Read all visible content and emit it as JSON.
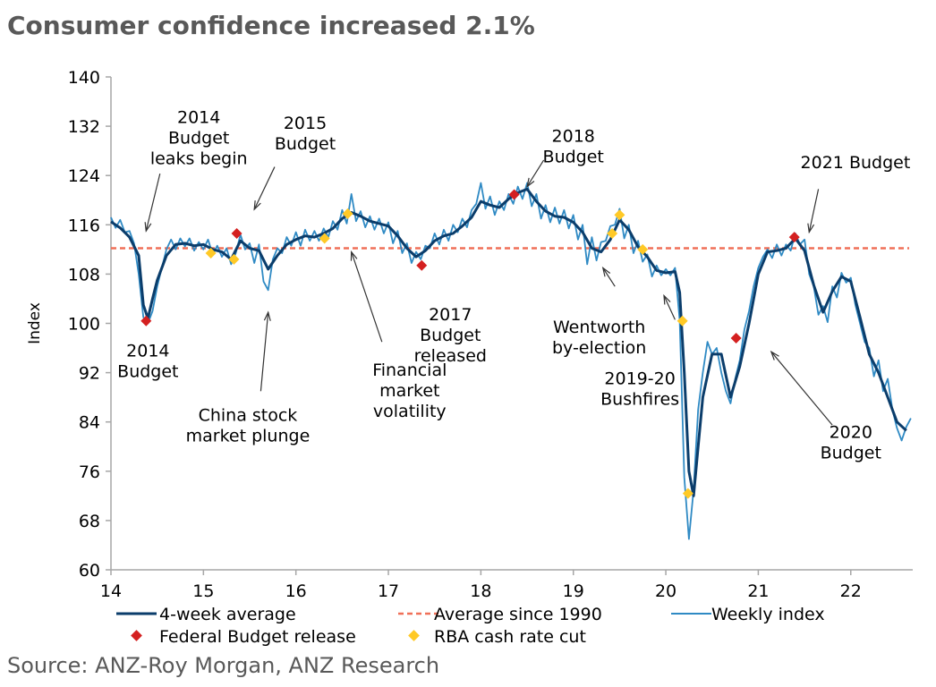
{
  "title": "Consumer confidence increased 2.1%",
  "source": "Source: ANZ-Roy Morgan, ANZ Research",
  "chart_data": {
    "type": "line",
    "ylabel": "Index",
    "xlabel": "",
    "xlim": [
      14,
      22.67
    ],
    "ylim": [
      60,
      140
    ],
    "y_ticks": [
      60,
      68,
      76,
      84,
      92,
      100,
      108,
      116,
      124,
      132,
      140
    ],
    "x_ticks": [
      14,
      15,
      16,
      17,
      18,
      19,
      20,
      21,
      22
    ],
    "x_tick_labels": [
      "14",
      "15",
      "16",
      "17",
      "18",
      "19",
      "20",
      "21",
      "22"
    ],
    "average_since_1990": 112.2,
    "legend": {
      "four_week": "4-week average",
      "average": "Average since 1990",
      "weekly": "Weekly index",
      "budget": "Federal Budget release",
      "rba": "RBA cash rate cut"
    },
    "colors": {
      "four_week": "#0b3d6b",
      "weekly": "#2f8ac4",
      "average": "#f07058",
      "budget": "#d42020",
      "rba": "#ffc926",
      "axis": "#a6a6a6"
    },
    "four_week": [
      [
        14.0,
        116.5
      ],
      [
        14.1,
        115.5
      ],
      [
        14.2,
        114
      ],
      [
        14.3,
        111
      ],
      [
        14.35,
        103
      ],
      [
        14.4,
        100.8
      ],
      [
        14.45,
        104
      ],
      [
        14.5,
        107
      ],
      [
        14.6,
        111
      ],
      [
        14.7,
        112.8
      ],
      [
        14.8,
        113
      ],
      [
        14.9,
        112.6
      ],
      [
        15.0,
        112.8
      ],
      [
        15.1,
        112
      ],
      [
        15.2,
        111.6
      ],
      [
        15.3,
        110.4
      ],
      [
        15.4,
        113.4
      ],
      [
        15.5,
        112.2
      ],
      [
        15.6,
        111.8
      ],
      [
        15.7,
        108.8
      ],
      [
        15.8,
        111
      ],
      [
        15.9,
        112.8
      ],
      [
        16.0,
        113.6
      ],
      [
        16.1,
        114.2
      ],
      [
        16.2,
        114
      ],
      [
        16.3,
        114.6
      ],
      [
        16.4,
        115.4
      ],
      [
        16.5,
        117
      ],
      [
        16.6,
        118
      ],
      [
        16.7,
        117.4
      ],
      [
        16.8,
        116.6
      ],
      [
        16.9,
        116.2
      ],
      [
        17.0,
        115.8
      ],
      [
        17.1,
        114.2
      ],
      [
        17.2,
        112.2
      ],
      [
        17.3,
        110.8
      ],
      [
        17.4,
        111.8
      ],
      [
        17.5,
        113.4
      ],
      [
        17.6,
        114.2
      ],
      [
        17.7,
        114.6
      ],
      [
        17.8,
        115.8
      ],
      [
        17.9,
        117.2
      ],
      [
        18.0,
        119.8
      ],
      [
        18.1,
        119.2
      ],
      [
        18.2,
        118.8
      ],
      [
        18.3,
        120.2
      ],
      [
        18.4,
        121.2
      ],
      [
        18.5,
        121.8
      ],
      [
        18.6,
        119.8
      ],
      [
        18.7,
        118.2
      ],
      [
        18.8,
        117.4
      ],
      [
        18.9,
        117.2
      ],
      [
        19.0,
        116.4
      ],
      [
        19.1,
        114.8
      ],
      [
        19.2,
        112.2
      ],
      [
        19.3,
        111.6
      ],
      [
        19.4,
        113.6
      ],
      [
        19.5,
        116.8
      ],
      [
        19.6,
        115.2
      ],
      [
        19.7,
        112.4
      ],
      [
        19.8,
        110.8
      ],
      [
        19.9,
        108.6
      ],
      [
        20.0,
        108.2
      ],
      [
        20.1,
        108.4
      ],
      [
        20.15,
        105
      ],
      [
        20.2,
        92
      ],
      [
        20.25,
        76
      ],
      [
        20.3,
        72
      ],
      [
        20.35,
        80
      ],
      [
        20.4,
        88
      ],
      [
        20.5,
        95
      ],
      [
        20.6,
        95
      ],
      [
        20.7,
        88
      ],
      [
        20.8,
        93
      ],
      [
        20.9,
        100
      ],
      [
        21.0,
        108
      ],
      [
        21.1,
        111.6
      ],
      [
        21.2,
        111.8
      ],
      [
        21.3,
        112.2
      ],
      [
        21.4,
        113.8
      ],
      [
        21.5,
        111.8
      ],
      [
        21.6,
        106.2
      ],
      [
        21.7,
        101.8
      ],
      [
        21.8,
        105.2
      ],
      [
        21.9,
        107.6
      ],
      [
        22.0,
        106.8
      ],
      [
        22.1,
        101
      ],
      [
        22.2,
        95
      ],
      [
        22.3,
        92
      ],
      [
        22.4,
        88
      ],
      [
        22.5,
        84
      ],
      [
        22.6,
        82.6
      ]
    ],
    "weekly": [
      [
        14.0,
        117.2
      ],
      [
        14.05,
        115.5
      ],
      [
        14.1,
        116.8
      ],
      [
        14.15,
        114.8
      ],
      [
        14.2,
        115
      ],
      [
        14.25,
        113
      ],
      [
        14.3,
        108
      ],
      [
        14.35,
        101
      ],
      [
        14.4,
        100
      ],
      [
        14.45,
        102
      ],
      [
        14.5,
        106
      ],
      [
        14.55,
        109
      ],
      [
        14.6,
        112
      ],
      [
        14.65,
        113.6
      ],
      [
        14.7,
        112
      ],
      [
        14.75,
        113.8
      ],
      [
        14.8,
        112.5
      ],
      [
        14.85,
        113.8
      ],
      [
        14.9,
        111.8
      ],
      [
        14.95,
        113.2
      ],
      [
        15.0,
        112
      ],
      [
        15.05,
        113.6
      ],
      [
        15.1,
        111.2
      ],
      [
        15.15,
        112.6
      ],
      [
        15.2,
        110.8
      ],
      [
        15.25,
        112.2
      ],
      [
        15.3,
        109.6
      ],
      [
        15.35,
        111.4
      ],
      [
        15.4,
        114.4
      ],
      [
        15.45,
        112
      ],
      [
        15.5,
        113
      ],
      [
        15.55,
        109.8
      ],
      [
        15.6,
        112.8
      ],
      [
        15.65,
        106.8
      ],
      [
        15.7,
        105.4
      ],
      [
        15.75,
        110.4
      ],
      [
        15.8,
        112.2
      ],
      [
        15.85,
        111.4
      ],
      [
        15.9,
        114
      ],
      [
        15.95,
        112.6
      ],
      [
        16.0,
        114.8
      ],
      [
        16.05,
        112.6
      ],
      [
        16.1,
        115.2
      ],
      [
        16.15,
        113.4
      ],
      [
        16.2,
        115
      ],
      [
        16.25,
        113.4
      ],
      [
        16.3,
        115.4
      ],
      [
        16.35,
        114
      ],
      [
        16.4,
        116.6
      ],
      [
        16.45,
        115.2
      ],
      [
        16.5,
        118.4
      ],
      [
        16.55,
        116.2
      ],
      [
        16.6,
        121
      ],
      [
        16.65,
        116.6
      ],
      [
        16.7,
        118.2
      ],
      [
        16.75,
        115.6
      ],
      [
        16.8,
        117.4
      ],
      [
        16.85,
        115.2
      ],
      [
        16.9,
        117
      ],
      [
        16.95,
        114.6
      ],
      [
        17.0,
        116.4
      ],
      [
        17.05,
        113
      ],
      [
        17.1,
        115
      ],
      [
        17.15,
        111.4
      ],
      [
        17.2,
        113
      ],
      [
        17.25,
        109.8
      ],
      [
        17.3,
        111.6
      ],
      [
        17.35,
        110.4
      ],
      [
        17.4,
        112.6
      ],
      [
        17.45,
        112.2
      ],
      [
        17.5,
        114.6
      ],
      [
        17.55,
        112.8
      ],
      [
        17.6,
        115.2
      ],
      [
        17.65,
        113.4
      ],
      [
        17.7,
        116
      ],
      [
        17.75,
        114.8
      ],
      [
        17.8,
        117
      ],
      [
        17.85,
        115.6
      ],
      [
        17.9,
        118.4
      ],
      [
        17.95,
        119.4
      ],
      [
        18.0,
        122.8
      ],
      [
        18.05,
        118.6
      ],
      [
        18.1,
        120.6
      ],
      [
        18.15,
        117.6
      ],
      [
        18.2,
        119.8
      ],
      [
        18.25,
        118.4
      ],
      [
        18.3,
        121
      ],
      [
        18.35,
        119.4
      ],
      [
        18.4,
        122.2
      ],
      [
        18.45,
        120.2
      ],
      [
        18.5,
        122.8
      ],
      [
        18.55,
        119
      ],
      [
        18.6,
        121
      ],
      [
        18.65,
        117
      ],
      [
        18.7,
        119.2
      ],
      [
        18.75,
        116.4
      ],
      [
        18.8,
        118.8
      ],
      [
        18.85,
        116.2
      ],
      [
        18.9,
        118.4
      ],
      [
        18.95,
        115.4
      ],
      [
        19.0,
        117.6
      ],
      [
        19.05,
        113.6
      ],
      [
        19.1,
        116
      ],
      [
        19.15,
        109.6
      ],
      [
        19.2,
        114
      ],
      [
        19.25,
        110.2
      ],
      [
        19.3,
        113.2
      ],
      [
        19.35,
        113.4
      ],
      [
        19.4,
        115.8
      ],
      [
        19.45,
        116
      ],
      [
        19.5,
        118.6
      ],
      [
        19.55,
        113.8
      ],
      [
        19.6,
        116
      ],
      [
        19.65,
        111.4
      ],
      [
        19.7,
        113.4
      ],
      [
        19.75,
        110
      ],
      [
        19.8,
        111.2
      ],
      [
        19.85,
        107.6
      ],
      [
        19.9,
        109.4
      ],
      [
        19.95,
        107.8
      ],
      [
        20.0,
        108.8
      ],
      [
        20.05,
        107.8
      ],
      [
        20.1,
        109
      ],
      [
        20.15,
        100.4
      ],
      [
        20.2,
        75
      ],
      [
        20.25,
        65
      ],
      [
        20.3,
        73
      ],
      [
        20.35,
        86
      ],
      [
        20.4,
        92
      ],
      [
        20.45,
        97
      ],
      [
        20.5,
        95
      ],
      [
        20.55,
        96
      ],
      [
        20.6,
        92
      ],
      [
        20.65,
        89
      ],
      [
        20.7,
        87
      ],
      [
        20.75,
        91
      ],
      [
        20.8,
        94
      ],
      [
        20.85,
        99
      ],
      [
        20.9,
        102
      ],
      [
        20.95,
        106
      ],
      [
        21.0,
        109
      ],
      [
        21.05,
        110.8
      ],
      [
        21.1,
        112
      ],
      [
        21.15,
        110.6
      ],
      [
        21.2,
        112.8
      ],
      [
        21.25,
        111
      ],
      [
        21.3,
        112.8
      ],
      [
        21.35,
        111.8
      ],
      [
        21.4,
        114.6
      ],
      [
        21.45,
        112.8
      ],
      [
        21.5,
        113.6
      ],
      [
        21.55,
        108
      ],
      [
        21.6,
        106
      ],
      [
        21.65,
        101.4
      ],
      [
        21.7,
        102.8
      ],
      [
        21.75,
        100.2
      ],
      [
        21.8,
        106
      ],
      [
        21.85,
        104.2
      ],
      [
        21.9,
        108.2
      ],
      [
        21.95,
        106.6
      ],
      [
        22.0,
        107.4
      ],
      [
        22.05,
        103
      ],
      [
        22.1,
        100
      ],
      [
        22.15,
        97
      ],
      [
        22.2,
        96
      ],
      [
        22.25,
        91.4
      ],
      [
        22.3,
        94
      ],
      [
        22.35,
        89
      ],
      [
        22.4,
        91
      ],
      [
        22.45,
        86
      ],
      [
        22.5,
        83
      ],
      [
        22.55,
        81
      ],
      [
        22.6,
        83.2
      ],
      [
        22.65,
        84.6
      ]
    ],
    "budget_points": [
      [
        14.38,
        100.4
      ],
      [
        15.36,
        114.6
      ],
      [
        17.36,
        109.4
      ],
      [
        18.36,
        120.9
      ],
      [
        20.76,
        97.6
      ],
      [
        21.39,
        114
      ]
    ],
    "rba_points": [
      [
        15.08,
        111.4
      ],
      [
        15.33,
        110.4
      ],
      [
        16.31,
        113.8
      ],
      [
        16.56,
        117.8
      ],
      [
        19.42,
        114.6
      ],
      [
        19.5,
        117.6
      ],
      [
        19.75,
        112
      ],
      [
        20.18,
        100.4
      ],
      [
        20.24,
        72.4
      ]
    ],
    "annotations": [
      {
        "lines": [
          "2014",
          "Budget",
          "leaks begin"
        ],
        "x": 14.95,
        "y": 132.5,
        "anchor": "middle",
        "arrow": [
          [
            14.53,
            124.3
          ],
          [
            14.38,
            115
          ]
        ]
      },
      {
        "lines": [
          "2015",
          "Budget"
        ],
        "x": 16.1,
        "y": 131.6,
        "anchor": "middle",
        "arrow": [
          [
            15.77,
            125.4
          ],
          [
            15.55,
            118.5
          ]
        ]
      },
      {
        "lines": [
          "2018",
          "Budget"
        ],
        "x": 19.0,
        "y": 129.5,
        "anchor": "middle",
        "arrow": [
          [
            18.68,
            126.5
          ],
          [
            18.5,
            122.2
          ]
        ]
      },
      {
        "lines": [
          "2021 Budget"
        ],
        "x": 22.05,
        "y": 125.2,
        "anchor": "middle",
        "arrow": [
          [
            21.65,
            121.8
          ],
          [
            21.55,
            114.8
          ]
        ]
      },
      {
        "lines": [
          "2014",
          "Budget"
        ],
        "x": 14.4,
        "y": 94.6,
        "anchor": "middle",
        "arrow": null
      },
      {
        "lines": [
          "China stock",
          "market plunge"
        ],
        "x": 15.48,
        "y": 84.2,
        "anchor": "middle",
        "arrow": [
          [
            15.62,
            89
          ],
          [
            15.7,
            101.8
          ]
        ]
      },
      {
        "lines": [
          "Financial",
          "market",
          "volatility"
        ],
        "x": 17.23,
        "y": 91.5,
        "anchor": "middle",
        "arrow": [
          [
            16.93,
            97
          ],
          [
            16.6,
            111.6
          ]
        ]
      },
      {
        "lines": [
          "2017",
          "Budget",
          "released"
        ],
        "x": 17.67,
        "y": 100.5,
        "anchor": "middle",
        "arrow": null
      },
      {
        "lines": [
          "Wentworth",
          "by-election"
        ],
        "x": 19.28,
        "y": 98.5,
        "anchor": "middle",
        "arrow": [
          [
            19.45,
            106
          ],
          [
            19.32,
            109
          ]
        ]
      },
      {
        "lines": [
          "2019-20",
          "Bushfires"
        ],
        "x": 19.72,
        "y": 90.1,
        "anchor": "middle",
        "arrow": [
          [
            20.1,
            100.6
          ],
          [
            19.98,
            104.5
          ]
        ]
      },
      {
        "lines": [
          "2020",
          "Budget"
        ],
        "x": 22.0,
        "y": 81.4,
        "anchor": "middle",
        "arrow": [
          [
            21.8,
            83.5
          ],
          [
            21.14,
            95.4
          ]
        ]
      }
    ]
  }
}
